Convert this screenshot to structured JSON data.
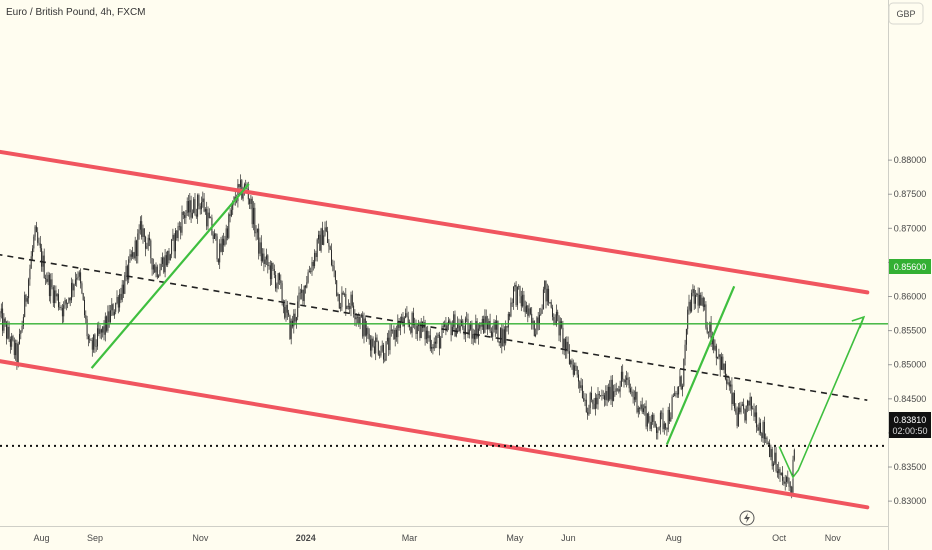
{
  "header": {
    "title": "Euro / British Pound, 4h, FXCM"
  },
  "axis": {
    "currency": "GBP"
  },
  "price_tag": {
    "value": "0.83810",
    "countdown": "02:00:50"
  },
  "level_tag": {
    "value": "0.85600"
  },
  "colors": {
    "background": "#fffdf0",
    "channel": "#f0555f",
    "trend": "#3fbf3f",
    "level": "#33b033",
    "midline": "#222222",
    "candle": "#2b2b2b",
    "price_tag": "#111111"
  },
  "chart_data": {
    "type": "candlestick",
    "symbol": "Euro / British Pound",
    "interval": "4h",
    "source": "FXCM",
    "y_unit": "GBP",
    "y_range": [
      0.826,
      0.886
    ],
    "y_ticks": [
      0.83,
      0.835,
      0.84,
      0.845,
      0.85,
      0.855,
      0.86,
      0.865,
      0.87,
      0.875,
      0.88
    ],
    "y_tick_labels": [
      "0.83000",
      "0.83500",
      "0.84000",
      "0.84500",
      "0.85000",
      "0.85500",
      "0.86000",
      "0.86500",
      "0.87000",
      "0.87500",
      "0.88000"
    ],
    "x_range": [
      "2023-07-08",
      "2024-12-03"
    ],
    "x_ticks": [
      {
        "label": "Aug",
        "date": "2023-08-01"
      },
      {
        "label": "Sep",
        "date": "2023-09-01"
      },
      {
        "label": "Nov",
        "date": "2023-11-01"
      },
      {
        "label": "2024",
        "date": "2024-01-01"
      },
      {
        "label": "Mar",
        "date": "2024-03-01"
      },
      {
        "label": "May",
        "date": "2024-05-01"
      },
      {
        "label": "Jun",
        "date": "2024-06-01"
      },
      {
        "label": "Aug",
        "date": "2024-08-01"
      },
      {
        "label": "Oct",
        "date": "2024-10-01"
      },
      {
        "label": "Nov",
        "date": "2024-11-01"
      }
    ],
    "price_path": [
      [
        "2023-07-08",
        0.857
      ],
      [
        "2023-07-18",
        0.851
      ],
      [
        "2023-07-28",
        0.869
      ],
      [
        "2023-08-05",
        0.862
      ],
      [
        "2023-08-14",
        0.858
      ],
      [
        "2023-08-22",
        0.864
      ],
      [
        "2023-08-29",
        0.852
      ],
      [
        "2023-09-06",
        0.855
      ],
      [
        "2023-09-18",
        0.862
      ],
      [
        "2023-09-28",
        0.87
      ],
      [
        "2023-10-06",
        0.864
      ],
      [
        "2023-10-14",
        0.866
      ],
      [
        "2023-10-22",
        0.872
      ],
      [
        "2023-11-02",
        0.874
      ],
      [
        "2023-11-12",
        0.866
      ],
      [
        "2023-11-22",
        0.875
      ],
      [
        "2023-11-28",
        0.876
      ],
      [
        "2023-12-06",
        0.866
      ],
      [
        "2023-12-16",
        0.862
      ],
      [
        "2023-12-23",
        0.855
      ],
      [
        "2024-01-03",
        0.864
      ],
      [
        "2024-01-12",
        0.87
      ],
      [
        "2024-01-20",
        0.86
      ],
      [
        "2024-01-28",
        0.859
      ],
      [
        "2024-02-06",
        0.854
      ],
      [
        "2024-02-16",
        0.852
      ],
      [
        "2024-02-24",
        0.856
      ],
      [
        "2024-03-05",
        0.856
      ],
      [
        "2024-03-16",
        0.853
      ],
      [
        "2024-03-26",
        0.856
      ],
      [
        "2024-04-05",
        0.855
      ],
      [
        "2024-04-15",
        0.856
      ],
      [
        "2024-04-25",
        0.854
      ],
      [
        "2024-04-30",
        0.861
      ],
      [
        "2024-05-06",
        0.859
      ],
      [
        "2024-05-12",
        0.855
      ],
      [
        "2024-05-18",
        0.861
      ],
      [
        "2024-05-26",
        0.856
      ],
      [
        "2024-06-01",
        0.851
      ],
      [
        "2024-06-06",
        0.849
      ],
      [
        "2024-06-12",
        0.844
      ],
      [
        "2024-06-22",
        0.845
      ],
      [
        "2024-07-02",
        0.848
      ],
      [
        "2024-07-10",
        0.845
      ],
      [
        "2024-07-20",
        0.841
      ],
      [
        "2024-07-28",
        0.842
      ],
      [
        "2024-08-06",
        0.848
      ],
      [
        "2024-08-10",
        0.859
      ],
      [
        "2024-08-15",
        0.86
      ],
      [
        "2024-08-22",
        0.855
      ],
      [
        "2024-08-30",
        0.849
      ],
      [
        "2024-09-07",
        0.842
      ],
      [
        "2024-09-15",
        0.844
      ],
      [
        "2024-09-24",
        0.839
      ],
      [
        "2024-10-02",
        0.833
      ],
      [
        "2024-10-08",
        0.832
      ],
      [
        "2024-10-10",
        0.838
      ]
    ],
    "last_price": 0.8381,
    "drawings": [
      {
        "type": "channel-line",
        "points": [
          [
            "2023-07-06",
            0.8813
          ],
          [
            "2024-11-21",
            0.8606
          ]
        ]
      },
      {
        "type": "channel-line",
        "points": [
          [
            "2023-07-06",
            0.8506
          ],
          [
            "2024-11-21",
            0.8291
          ]
        ]
      },
      {
        "type": "midline",
        "points": [
          [
            "2023-07-06",
            0.8662
          ],
          [
            "2024-11-21",
            0.8448
          ]
        ]
      },
      {
        "type": "trendline",
        "points": [
          [
            "2023-08-30",
            0.8495
          ],
          [
            "2023-11-29",
            0.8765
          ]
        ]
      },
      {
        "type": "trendline",
        "points": [
          [
            "2024-07-28",
            0.8383
          ],
          [
            "2024-09-05",
            0.8615
          ]
        ]
      },
      {
        "type": "horizontal-level",
        "value": 0.856
      },
      {
        "type": "horizontal-level",
        "value": 0.8381
      },
      {
        "type": "projection",
        "points": [
          [
            "2024-10-01",
            0.838
          ],
          [
            "2024-10-09",
            0.8335
          ],
          [
            "2024-10-12",
            0.8345
          ],
          [
            "2024-11-19",
            0.857
          ]
        ]
      }
    ]
  }
}
